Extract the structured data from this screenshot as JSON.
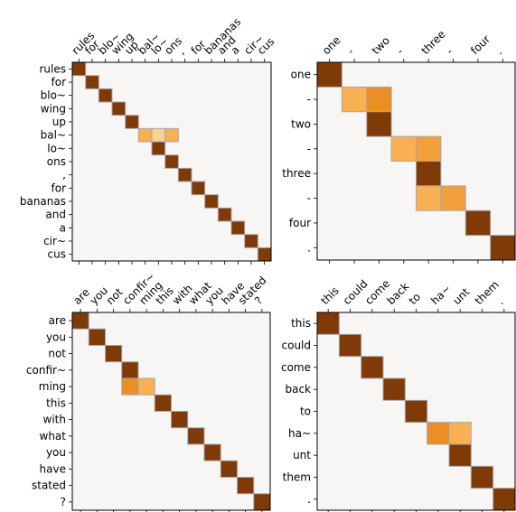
{
  "figure": {
    "colors": {
      "background": "#f7f6f5",
      "cell_border": "#a7a7a7",
      "frame": "#000000",
      "scale": [
        "#f7f6f5",
        "#fdd9a5",
        "#f8b053",
        "#e9861b",
        "#7f3a08"
      ]
    }
  },
  "chart_data": [
    {
      "type": "heatmap",
      "title": "",
      "x_labels": [
        "rules",
        "for",
        "blo~",
        "wing",
        "up",
        "bal~",
        "lo~",
        "ons",
        ",",
        "for",
        "bananas",
        "and",
        "a",
        "cir~",
        "cus"
      ],
      "y_labels": [
        "rules",
        "for",
        "blo~",
        "wing",
        "up",
        "bal~",
        "lo~",
        "ons",
        ",",
        "for",
        "bananas",
        "and",
        "a",
        "cir~",
        "cus"
      ],
      "cells": [
        {
          "row": 0,
          "col": 0,
          "value": 1.0
        },
        {
          "row": 1,
          "col": 1,
          "value": 1.0
        },
        {
          "row": 2,
          "col": 2,
          "value": 1.0
        },
        {
          "row": 3,
          "col": 3,
          "value": 1.0
        },
        {
          "row": 4,
          "col": 4,
          "value": 1.0
        },
        {
          "row": 5,
          "col": 5,
          "value": 0.5
        },
        {
          "row": 5,
          "col": 6,
          "value": 0.3
        },
        {
          "row": 5,
          "col": 7,
          "value": 0.5
        },
        {
          "row": 6,
          "col": 6,
          "value": 1.0
        },
        {
          "row": 7,
          "col": 7,
          "value": 1.0
        },
        {
          "row": 8,
          "col": 8,
          "value": 1.0
        },
        {
          "row": 9,
          "col": 9,
          "value": 1.0
        },
        {
          "row": 10,
          "col": 10,
          "value": 1.0
        },
        {
          "row": 11,
          "col": 11,
          "value": 1.0
        },
        {
          "row": 12,
          "col": 12,
          "value": 1.0
        },
        {
          "row": 13,
          "col": 13,
          "value": 1.0
        },
        {
          "row": 14,
          "col": 14,
          "value": 1.0
        }
      ],
      "colorscale": "Oranges",
      "vrange": [
        0,
        1
      ]
    },
    {
      "type": "heatmap",
      "title": "",
      "x_labels": [
        "one",
        "-",
        "two",
        "-",
        "three",
        "-",
        "four",
        "."
      ],
      "y_labels": [
        "one",
        "-",
        "two",
        "-",
        "three",
        "-",
        "four",
        "."
      ],
      "cells": [
        {
          "row": 0,
          "col": 0,
          "value": 1.0
        },
        {
          "row": 1,
          "col": 1,
          "value": 0.5
        },
        {
          "row": 1,
          "col": 2,
          "value": 0.7
        },
        {
          "row": 2,
          "col": 2,
          "value": 1.0
        },
        {
          "row": 3,
          "col": 3,
          "value": 0.5
        },
        {
          "row": 3,
          "col": 4,
          "value": 0.6
        },
        {
          "row": 4,
          "col": 4,
          "value": 1.0
        },
        {
          "row": 5,
          "col": 4,
          "value": 0.5
        },
        {
          "row": 5,
          "col": 5,
          "value": 0.6
        },
        {
          "row": 6,
          "col": 6,
          "value": 1.0
        },
        {
          "row": 7,
          "col": 7,
          "value": 1.0
        }
      ],
      "colorscale": "Oranges",
      "vrange": [
        0,
        1
      ]
    },
    {
      "type": "heatmap",
      "title": "",
      "x_labels": [
        "are",
        "you",
        "not",
        "confir~",
        "ming",
        "this",
        "with",
        "what",
        "you",
        "have",
        "stated",
        "?"
      ],
      "y_labels": [
        "are",
        "you",
        "not",
        "confir~",
        "ming",
        "this",
        "with",
        "what",
        "you",
        "have",
        "stated",
        "?"
      ],
      "cells": [
        {
          "row": 0,
          "col": 0,
          "value": 1.0
        },
        {
          "row": 1,
          "col": 1,
          "value": 1.0
        },
        {
          "row": 2,
          "col": 2,
          "value": 1.0
        },
        {
          "row": 3,
          "col": 3,
          "value": 1.0
        },
        {
          "row": 4,
          "col": 3,
          "value": 0.7
        },
        {
          "row": 4,
          "col": 4,
          "value": 0.5
        },
        {
          "row": 5,
          "col": 5,
          "value": 1.0
        },
        {
          "row": 6,
          "col": 6,
          "value": 1.0
        },
        {
          "row": 7,
          "col": 7,
          "value": 1.0
        },
        {
          "row": 8,
          "col": 8,
          "value": 1.0
        },
        {
          "row": 9,
          "col": 9,
          "value": 1.0
        },
        {
          "row": 10,
          "col": 10,
          "value": 1.0
        },
        {
          "row": 11,
          "col": 11,
          "value": 1.0
        }
      ],
      "colorscale": "Oranges",
      "vrange": [
        0,
        1
      ]
    },
    {
      "type": "heatmap",
      "title": "",
      "x_labels": [
        "this",
        "could",
        "come",
        "back",
        "to",
        "ha~",
        "unt",
        "them",
        "."
      ],
      "y_labels": [
        "this",
        "could",
        "come",
        "back",
        "to",
        "ha~",
        "unt",
        "them",
        "."
      ],
      "cells": [
        {
          "row": 0,
          "col": 0,
          "value": 1.0
        },
        {
          "row": 1,
          "col": 1,
          "value": 1.0
        },
        {
          "row": 2,
          "col": 2,
          "value": 1.0
        },
        {
          "row": 3,
          "col": 3,
          "value": 1.0
        },
        {
          "row": 4,
          "col": 4,
          "value": 1.0
        },
        {
          "row": 5,
          "col": 5,
          "value": 0.7
        },
        {
          "row": 5,
          "col": 6,
          "value": 0.5
        },
        {
          "row": 6,
          "col": 6,
          "value": 1.0
        },
        {
          "row": 7,
          "col": 7,
          "value": 1.0
        },
        {
          "row": 8,
          "col": 8,
          "value": 1.0
        }
      ],
      "colorscale": "Oranges",
      "vrange": [
        0,
        1
      ]
    }
  ]
}
